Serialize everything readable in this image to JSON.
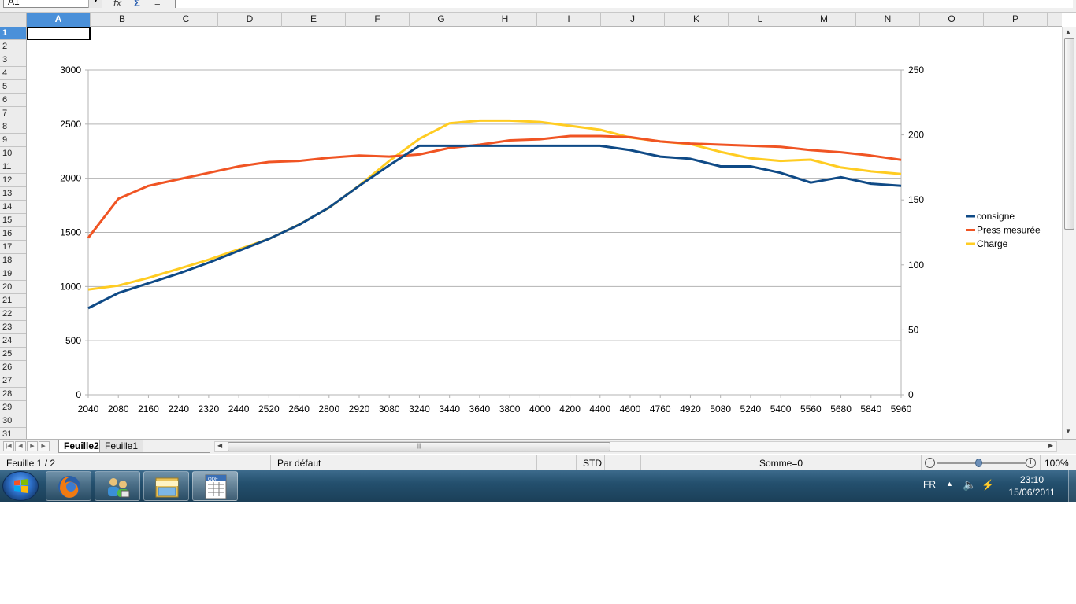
{
  "formula_bar": {
    "name_box": "A1",
    "fx_icon": "fx",
    "sum_icon": "Σ",
    "equals_icon": "="
  },
  "columns": [
    "A",
    "B",
    "C",
    "D",
    "E",
    "F",
    "G",
    "H",
    "I",
    "J",
    "K",
    "L",
    "M",
    "N",
    "O",
    "P"
  ],
  "selected_column": "A",
  "rows": [
    "1",
    "2",
    "3",
    "4",
    "5",
    "6",
    "7",
    "8",
    "9",
    "10",
    "11",
    "12",
    "13",
    "14",
    "15",
    "16",
    "17",
    "18",
    "19",
    "20",
    "21",
    "22",
    "23",
    "24",
    "25",
    "26",
    "27",
    "28",
    "29",
    "30",
    "31"
  ],
  "selected_row": "1",
  "sheet_tabs": [
    {
      "label": "Feuille2",
      "active": true
    },
    {
      "label": "Feuille1",
      "active": false
    }
  ],
  "status_bar": {
    "sheet_position": "Feuille 1 / 2",
    "page_style": "Par défaut",
    "selection_mode": "STD",
    "sum": "Somme=0",
    "zoom": "100%"
  },
  "taskbar": {
    "language": "FR",
    "time": "23:10",
    "date": "15/06/2011",
    "apps": [
      "firefox-icon",
      "network-users-icon",
      "file-explorer-icon",
      "odf-spreadsheet-icon"
    ]
  },
  "colors": {
    "consigne": "#0f4a86",
    "press": "#f05423",
    "charge": "#ffcc22",
    "grid": "#b3b3b3",
    "selection": "#4a90d9"
  },
  "chart_data": {
    "type": "line",
    "categories": [
      "2040",
      "2080",
      "2160",
      "2240",
      "2320",
      "2440",
      "2520",
      "2640",
      "2800",
      "2920",
      "3080",
      "3240",
      "3440",
      "3640",
      "3800",
      "4000",
      "4200",
      "4400",
      "4600",
      "4760",
      "4920",
      "5080",
      "5240",
      "5400",
      "5560",
      "5680",
      "5840",
      "5960"
    ],
    "y_left_ticks": [
      "0",
      "500",
      "1000",
      "1500",
      "2000",
      "2500",
      "3000"
    ],
    "y_left_range": [
      0,
      3000
    ],
    "y_right_ticks": [
      "0",
      "50",
      "100",
      "150",
      "200",
      "250"
    ],
    "y_right_range": [
      0,
      250
    ],
    "grid": true,
    "legend_position": "right",
    "series": [
      {
        "name": "consigne",
        "axis": "left",
        "values": [
          800,
          940,
          1030,
          1120,
          1220,
          1330,
          1440,
          1570,
          1730,
          1930,
          2120,
          2300,
          2300,
          2300,
          2300,
          2300,
          2300,
          2300,
          2260,
          2200,
          2180,
          2110,
          2110,
          2050,
          1960,
          2010,
          1950,
          1930
        ]
      },
      {
        "name": "Press mesurée",
        "axis": "left",
        "values": [
          1450,
          1810,
          1930,
          1990,
          2050,
          2110,
          2150,
          2160,
          2190,
          2210,
          2200,
          2220,
          2280,
          2310,
          2350,
          2360,
          2390,
          2390,
          2380,
          2340,
          2320,
          2310,
          2300,
          2290,
          2260,
          2240,
          2210,
          2170
        ]
      },
      {
        "name": "Charge",
        "axis": "right",
        "values": [
          81,
          84,
          90,
          97,
          104,
          112,
          120,
          131,
          144,
          161,
          180,
          197,
          209,
          211,
          211,
          210,
          207,
          204,
          198,
          195,
          193,
          187,
          182,
          180,
          181,
          175,
          172,
          170
        ]
      }
    ]
  }
}
